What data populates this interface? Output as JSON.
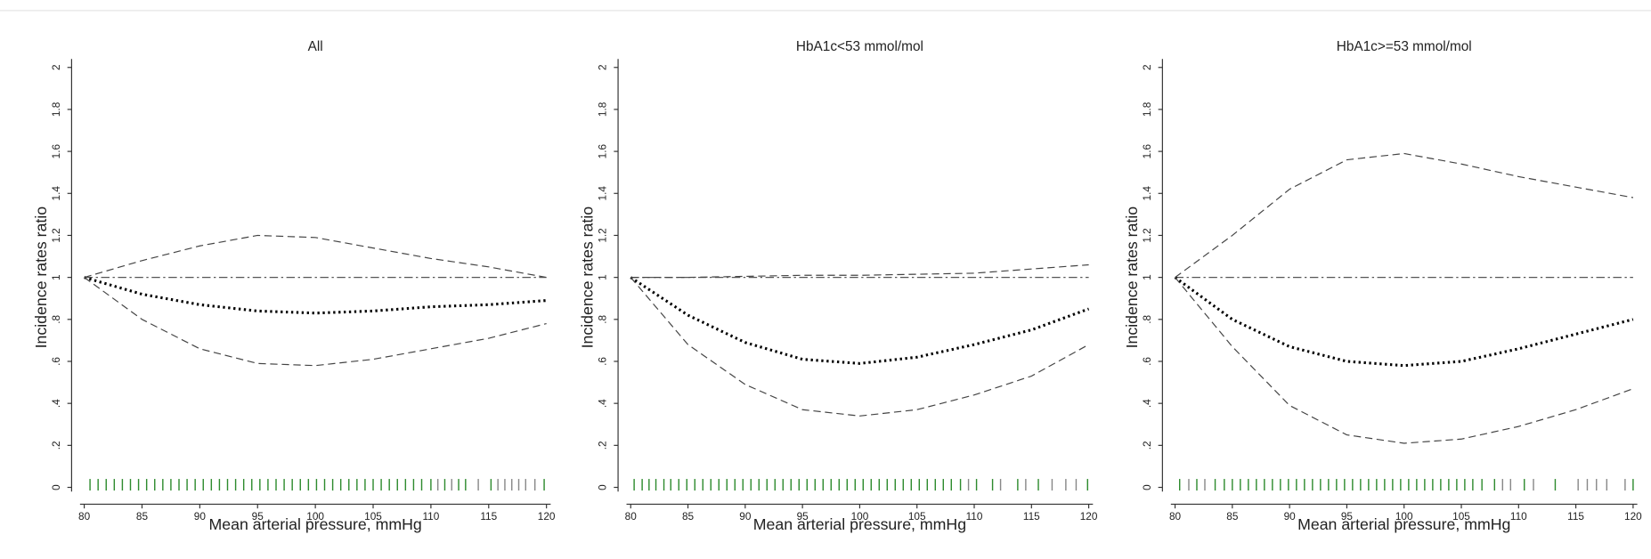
{
  "chart_data": [
    {
      "type": "line",
      "title": "All",
      "xlabel": "Mean arterial pressure, mmHg",
      "ylabel": "Incidence rates ratio",
      "x": [
        80,
        85,
        90,
        95,
        100,
        105,
        110,
        115,
        120
      ],
      "series": [
        {
          "color": "#000000",
          "style": "dotted",
          "values": [
            1,
            0.92,
            0.87,
            0.84,
            0.83,
            0.84,
            0.86,
            0.87,
            0.89
          ]
        },
        {
          "color": "#444444",
          "style": "dashed",
          "values": [
            1,
            1.08,
            1.15,
            1.2,
            1.19,
            1.14,
            1.09,
            1.05,
            1.0
          ]
        },
        {
          "color": "#444444",
          "style": "dashed",
          "values": [
            1,
            0.8,
            0.66,
            0.59,
            0.58,
            0.61,
            0.66,
            0.71,
            0.78
          ]
        }
      ],
      "reference_line": 1,
      "rug": [
        {
          "color": "#2e8b2e",
          "x": [
            80.5,
            81.2,
            81.9,
            82.6,
            83.3,
            84,
            84.7,
            85.4,
            86.1,
            86.8,
            87.5,
            88.2,
            88.9,
            89.6,
            90.3,
            91,
            91.7,
            92.4,
            93.1,
            93.8,
            94.5,
            95.2,
            95.9,
            96.6,
            97.3,
            98,
            98.7,
            99.4,
            100.1,
            100.8,
            101.5,
            102.2,
            102.9,
            103.6,
            104.3,
            105,
            105.7,
            106.4,
            107.1,
            107.8,
            108.5,
            109.2,
            110,
            111.2,
            112.4,
            113,
            115.2,
            119.8
          ]
        },
        {
          "color": "#888888",
          "x": [
            110.6,
            111.8,
            114.1,
            115.8,
            116.4,
            117,
            117.6,
            118.2,
            119
          ]
        }
      ],
      "xlim": [
        80,
        120
      ],
      "xticks": [
        80,
        85,
        90,
        95,
        100,
        105,
        110,
        115,
        120
      ],
      "ylim": [
        0,
        2
      ],
      "yticks": [
        0,
        {
          "value": 0.2,
          "label": ".2"
        },
        {
          "value": 0.4,
          "label": ".4"
        },
        {
          "value": 0.6,
          "label": ".6"
        },
        {
          "value": 0.8,
          "label": ".8"
        },
        1,
        1.2,
        1.4,
        1.6,
        1.8,
        2
      ]
    },
    {
      "type": "line",
      "title": "HbA1c<53 mmol/mol",
      "xlabel": "Mean arterial pressure, mmHg",
      "ylabel": "Incidence rates ratio",
      "x": [
        80,
        85,
        90,
        95,
        100,
        105,
        110,
        115,
        120
      ],
      "series": [
        {
          "color": "#000000",
          "style": "dotted",
          "values": [
            1,
            0.82,
            0.69,
            0.61,
            0.59,
            0.62,
            0.68,
            0.75,
            0.85
          ]
        },
        {
          "color": "#444444",
          "style": "dashed",
          "values": [
            1,
            1,
            1.005,
            1.01,
            1.01,
            1.015,
            1.02,
            1.04,
            1.06
          ]
        },
        {
          "color": "#444444",
          "style": "dashed",
          "values": [
            1,
            0.68,
            0.49,
            0.37,
            0.34,
            0.37,
            0.44,
            0.53,
            0.68
          ]
        }
      ],
      "reference_line": 1,
      "rug": [
        {
          "color": "#2e8b2e",
          "x": [
            80.3,
            81,
            81.6,
            82.2,
            82.9,
            83.5,
            84.2,
            84.9,
            85.6,
            86.3,
            87,
            87.7,
            88.4,
            89.1,
            89.8,
            90.5,
            91.2,
            91.9,
            92.6,
            93.3,
            94,
            94.7,
            95.4,
            96.1,
            96.8,
            97.5,
            98.2,
            98.9,
            99.6,
            100.3,
            101,
            101.7,
            102.4,
            103.1,
            103.8,
            104.5,
            105.2,
            105.9,
            106.6,
            107.3,
            108,
            108.8,
            110.2,
            111.6,
            113.8,
            115.6,
            119.9
          ]
        },
        {
          "color": "#888888",
          "x": [
            109.5,
            112.3,
            114.5,
            116.8,
            118,
            118.9
          ]
        }
      ],
      "xlim": [
        80,
        120
      ],
      "xticks": [
        80,
        85,
        90,
        95,
        100,
        105,
        110,
        115,
        120
      ],
      "ylim": [
        0,
        2
      ],
      "yticks": [
        0,
        {
          "value": 0.2,
          "label": ".2"
        },
        {
          "value": 0.4,
          "label": ".4"
        },
        {
          "value": 0.6,
          "label": ".6"
        },
        {
          "value": 0.8,
          "label": ".8"
        },
        1,
        1.2,
        1.4,
        1.6,
        1.8,
        2
      ]
    },
    {
      "type": "line",
      "title": "HbA1c>=53 mmol/mol",
      "xlabel": "Mean arterial pressure, mmHg",
      "ylabel": "Incidence rates ratio",
      "x": [
        80,
        85,
        90,
        95,
        100,
        105,
        110,
        115,
        120
      ],
      "series": [
        {
          "color": "#000000",
          "style": "dotted",
          "values": [
            1,
            0.8,
            0.67,
            0.6,
            0.58,
            0.6,
            0.66,
            0.73,
            0.8
          ]
        },
        {
          "color": "#444444",
          "style": "dashed",
          "values": [
            1,
            1.2,
            1.42,
            1.56,
            1.59,
            1.54,
            1.48,
            1.43,
            1.38
          ]
        },
        {
          "color": "#444444",
          "style": "dashed",
          "values": [
            1,
            0.67,
            0.39,
            0.25,
            0.21,
            0.23,
            0.29,
            0.37,
            0.47
          ]
        }
      ],
      "reference_line": 1,
      "rug": [
        {
          "color": "#2e8b2e",
          "x": [
            80.4,
            81.9,
            83.5,
            84.3,
            85,
            85.7,
            86.4,
            87.1,
            87.8,
            88.5,
            89.2,
            89.9,
            90.6,
            91.3,
            92,
            92.7,
            93.4,
            94.1,
            94.8,
            95.5,
            96.2,
            96.9,
            97.6,
            98.3,
            99,
            99.7,
            100.4,
            101.1,
            101.8,
            102.5,
            103.2,
            103.9,
            104.6,
            105.3,
            106,
            106.8,
            107.9,
            110.5,
            113.2,
            120
          ]
        },
        {
          "color": "#888888",
          "x": [
            81.2,
            82.6,
            108.6,
            109.3,
            111.3,
            115.2,
            116,
            116.8,
            117.7,
            119.3
          ]
        }
      ],
      "xlim": [
        80,
        120
      ],
      "xticks": [
        80,
        85,
        90,
        95,
        100,
        105,
        110,
        115,
        120
      ],
      "ylim": [
        0,
        2
      ],
      "yticks": [
        0,
        {
          "value": 0.2,
          "label": ".2"
        },
        {
          "value": 0.4,
          "label": ".4"
        },
        {
          "value": 0.6,
          "label": ".6"
        },
        {
          "value": 0.8,
          "label": ".8"
        },
        1,
        1.2,
        1.4,
        1.6,
        1.8,
        2
      ]
    }
  ]
}
